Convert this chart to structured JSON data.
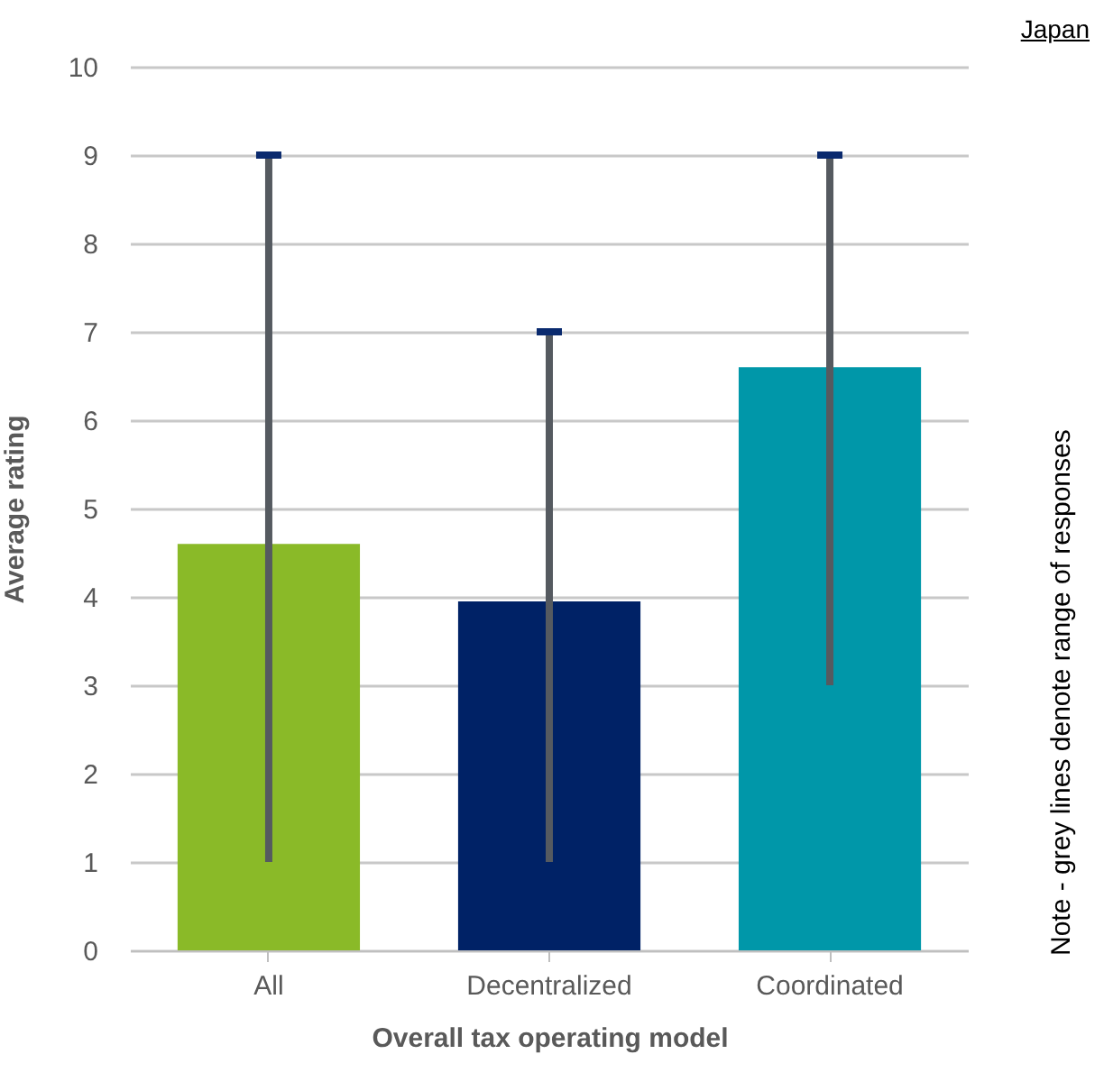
{
  "chart_data": {
    "type": "bar",
    "categories": [
      "All",
      "Decentralized",
      "Coordinated"
    ],
    "values": [
      4.6,
      3.95,
      6.6
    ],
    "colors": [
      "#8aba28",
      "#002266",
      "#0097a9"
    ],
    "errors": [
      [
        1,
        9
      ],
      [
        1,
        7
      ],
      [
        3,
        9
      ]
    ],
    "xlabel": "Overall tax operating model",
    "ylabel": "Average rating",
    "ylim": [
      0,
      10
    ],
    "yticks": [
      0,
      1,
      2,
      3,
      4,
      5,
      6,
      7,
      8,
      9,
      10
    ],
    "grid": "y",
    "annotations": [
      "Japan",
      "Note - grey lines denote range of responses"
    ]
  }
}
